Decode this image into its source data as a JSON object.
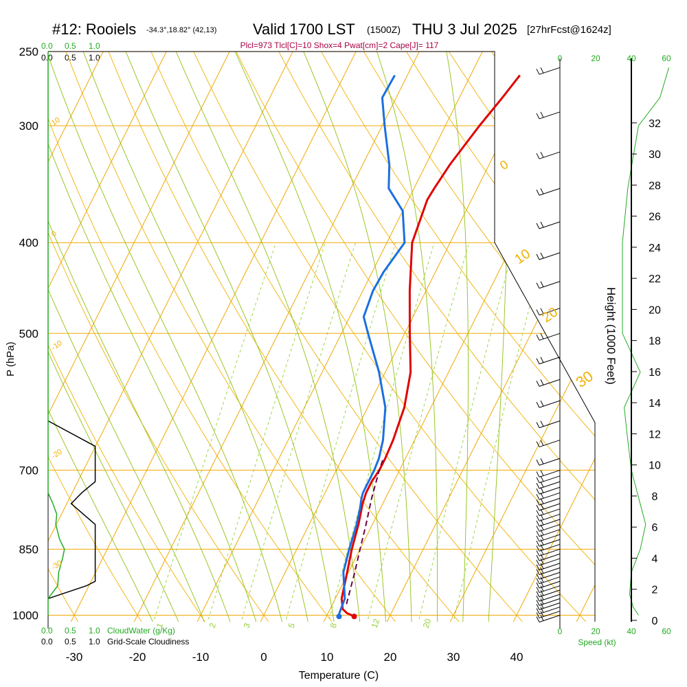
{
  "header": {
    "station": "#12: Rooiels",
    "coords": "-34.3°,18.82° (42,13)",
    "valid": "Valid 1700 LST",
    "utc": "(1500Z)",
    "date": "THU 3 Jul 2025",
    "forecast": "[27hrFcst@1624z]",
    "indices": "Plcl=973 Tlcl[C]=10 Shox=4 Pwat[cm]=2 Cape[J]= 117"
  },
  "colors": {
    "temperature": "#e00000",
    "dewpoint": "#1a6fe0",
    "parcel": "#6a0040",
    "isobar": "#f0a800",
    "isotherm": "#f0a800",
    "dry_adiabat": "#f0b000",
    "moist_adiabat": "#90c010",
    "mixing_ratio": "#90d030",
    "cloudwater": "#22aa22",
    "cloudiness": "#000000",
    "wind": "#000000",
    "indices": "#aa0044"
  },
  "axes": {
    "pressure_label": "P (hPa)",
    "temperature_label": "Temperature (C)",
    "height_label": "Height (1000 Feet)",
    "speed_label": "Speed (kt)"
  },
  "scales": {
    "cloudwater_top": [
      "0.0",
      "0.5",
      "1.0"
    ],
    "cloudiness_top": [
      "0.0",
      "0.5",
      "1.0"
    ],
    "cloudwater_bottom": [
      "0.0",
      "0.5",
      "1.0"
    ],
    "cloudwater_label": "CloudWater (g/Kg)",
    "cloudiness_bottom": [
      "0.0",
      "0.5",
      "1.0"
    ],
    "cloudiness_label": "Grid-Scale Cloudiness",
    "speed_top_black": [
      "0"
    ],
    "speed_top_green": [
      "20",
      "40",
      "60"
    ],
    "speed_bottom_black": [
      "0",
      "20"
    ],
    "speed_bottom_green": [
      "40",
      "60"
    ]
  },
  "chart_data": {
    "type": "line",
    "title": "#12: Rooiels",
    "xlabel": "Temperature (C)",
    "ylabel": "P (hPa)",
    "y2label": "Height (1000 Feet)",
    "xlim": [
      -34,
      46
    ],
    "ylim": [
      1010,
      250
    ],
    "pressure_ticks": [
      250,
      300,
      400,
      500,
      700,
      850,
      1000
    ],
    "temperature_ticks": [
      -30,
      -20,
      -10,
      0,
      10,
      20,
      30,
      40
    ],
    "height_ticks": [
      0,
      2,
      4,
      6,
      8,
      10,
      12,
      14,
      16,
      18,
      20,
      22,
      24,
      26,
      28,
      30,
      32
    ],
    "dry_adiabat_labels": [
      "10",
      "0",
      "-10",
      "-20",
      "-30",
      "0",
      "10",
      "20",
      "30"
    ],
    "mixing_ratio_labels": [
      "1",
      "2",
      "3",
      "5",
      "8",
      "12",
      "20"
    ],
    "series": [
      {
        "name": "Temperature",
        "pressure": [
          1003,
          995,
          985,
          960,
          900,
          850,
          800,
          760,
          740,
          720,
          700,
          680,
          650,
          600,
          550,
          500,
          450,
          400,
          360,
          350,
          330,
          300,
          280,
          265
        ],
        "temperature": [
          14.4,
          13.0,
          12.0,
          11.0,
          9.8,
          8.7,
          7.8,
          6.8,
          6.5,
          6.5,
          6.8,
          6.8,
          6.6,
          5.8,
          4.0,
          0.8,
          -2.6,
          -6.0,
          -7.0,
          -6.8,
          -6.2,
          -4.6,
          -3.2,
          -2.2
        ]
      },
      {
        "name": "Dewpoint",
        "pressure": [
          1003,
          995,
          960,
          900,
          850,
          800,
          770,
          750,
          740,
          720,
          700,
          680,
          650,
          600,
          550,
          500,
          480,
          450,
          430,
          400,
          370,
          350,
          330,
          300,
          280,
          265
        ],
        "temperature": [
          12.0,
          11.8,
          11.5,
          9.2,
          8.3,
          7.5,
          6.8,
          6.2,
          6.0,
          6.0,
          6.0,
          5.8,
          5.0,
          2.8,
          -1.0,
          -5.8,
          -7.8,
          -8.4,
          -8.2,
          -7.2,
          -10.0,
          -14.0,
          -15.8,
          -19.6,
          -22.2,
          -22.0
        ]
      },
      {
        "name": "Parcel",
        "pressure": [
          973,
          900,
          850,
          800,
          750,
          700,
          680
        ],
        "temperature": [
          12.2,
          11.0,
          10.0,
          9.0,
          7.8,
          6.8,
          6.5
        ]
      }
    ],
    "cloudiness_profile": {
      "pressure": [
        960,
        930,
        920,
        800,
        760,
        740,
        720,
        690,
        680,
        660,
        620
      ],
      "fraction": [
        0.0,
        0.8,
        0.98,
        0.98,
        0.48,
        0.7,
        0.98,
        0.98,
        0.98,
        0.98,
        0.0
      ]
    },
    "cloudwater_profile": {
      "pressure": [
        1000,
        960,
        930,
        900,
        870,
        850,
        830,
        800,
        780,
        760,
        740,
        720,
        700,
        250
      ],
      "value": [
        0.0,
        0.0,
        0.2,
        0.22,
        0.3,
        0.34,
        0.24,
        0.16,
        0.18,
        0.1,
        0.0,
        0.0,
        0.0,
        0.0
      ]
    },
    "wind_speed_profile": {
      "pressure": [
        1000,
        980,
        950,
        900,
        850,
        800,
        700,
        650,
        600,
        550,
        500,
        400,
        350,
        300,
        280,
        260
      ],
      "speed": [
        44,
        41,
        39,
        40,
        45,
        48,
        40,
        38,
        36,
        45,
        35,
        35,
        38,
        44,
        56,
        61
      ]
    }
  }
}
